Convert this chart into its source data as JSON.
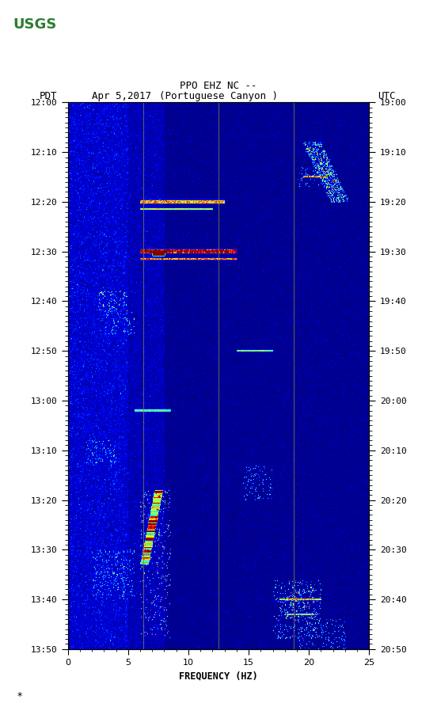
{
  "title_line1": "PPO EHZ NC --",
  "title_line2": "(Portuguese Canyon )",
  "left_label": "PDT",
  "date_label": "Apr 5,2017",
  "right_label": "UTC",
  "xlabel": "FREQUENCY (HZ)",
  "freq_min": 0,
  "freq_max": 25,
  "pdt_ticks": [
    "12:00",
    "12:10",
    "12:20",
    "12:30",
    "12:40",
    "12:50",
    "13:00",
    "13:10",
    "13:20",
    "13:30",
    "13:40",
    "13:50"
  ],
  "utc_ticks": [
    "19:00",
    "19:10",
    "19:20",
    "19:30",
    "19:40",
    "19:50",
    "20:00",
    "20:10",
    "20:20",
    "20:30",
    "20:40",
    "20:50"
  ],
  "xticks": [
    0,
    5,
    10,
    15,
    20,
    25
  ],
  "vertical_lines_freq": [
    6.25,
    12.5,
    18.75
  ],
  "fig_bg": "#ffffff",
  "seed": 42,
  "n_time": 660,
  "n_freq": 500
}
